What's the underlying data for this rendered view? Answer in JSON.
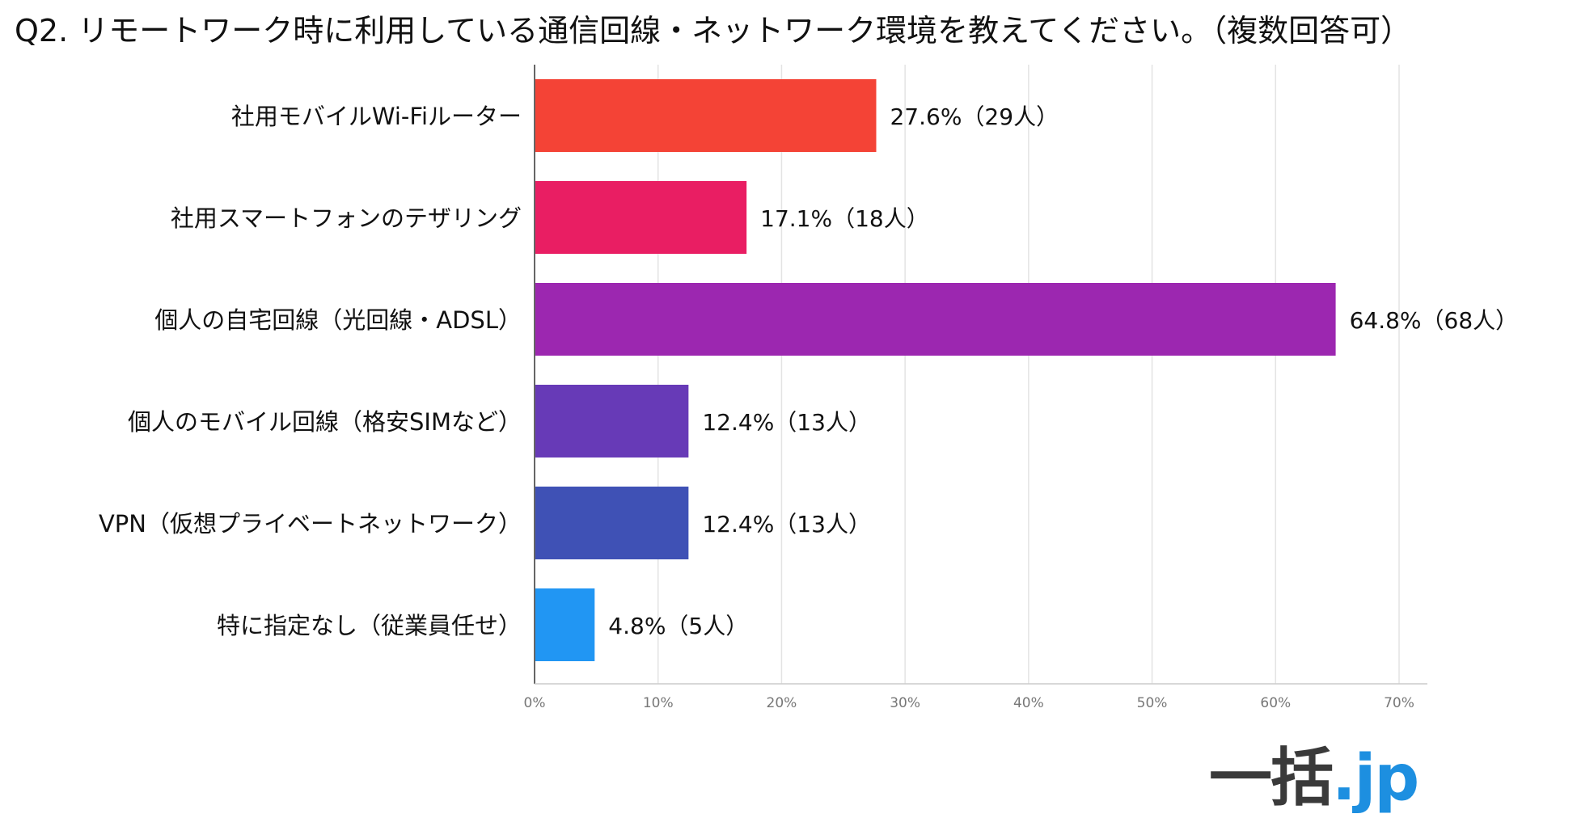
{
  "chart_data": {
    "type": "bar",
    "orientation": "horizontal",
    "title": "Q2. リモートワーク時に利用している通信回線・ネットワーク環境を教えてください。（複数回答可）",
    "categories": [
      "社用モバイルWi-Fiルーター",
      "社用スマートフォンのテザリング",
      "個人の自宅回線（光回線・ADSL）",
      "個人のモバイル回線（格安SIMなど）",
      "VPN（仮想プライベートネットワーク）",
      "特に指定なし（従業員任せ）"
    ],
    "values": [
      27.6,
      17.1,
      64.8,
      12.4,
      12.4,
      4.8
    ],
    "counts": [
      29,
      18,
      68,
      13,
      13,
      5
    ],
    "labels": [
      "27.6%（29人）",
      "17.1%（18人）",
      "64.8%（68人）",
      "12.4%（13人）",
      "12.4%（13人）",
      "4.8%（5人）"
    ],
    "colors": [
      "#f44336",
      "#e91e63",
      "#9c27b0",
      "#673ab7",
      "#3f51b5",
      "#2196f3"
    ],
    "xlim": [
      0,
      70
    ],
    "xticks": [
      0,
      10,
      20,
      30,
      40,
      50,
      60,
      70
    ],
    "xtick_labels": [
      "0%",
      "10%",
      "20%",
      "30%",
      "40%",
      "50%",
      "60%",
      "70%"
    ],
    "grid": true,
    "xlabel": "",
    "ylabel": ""
  },
  "logo": {
    "kanji": "一括",
    "suffix": ".jp"
  }
}
